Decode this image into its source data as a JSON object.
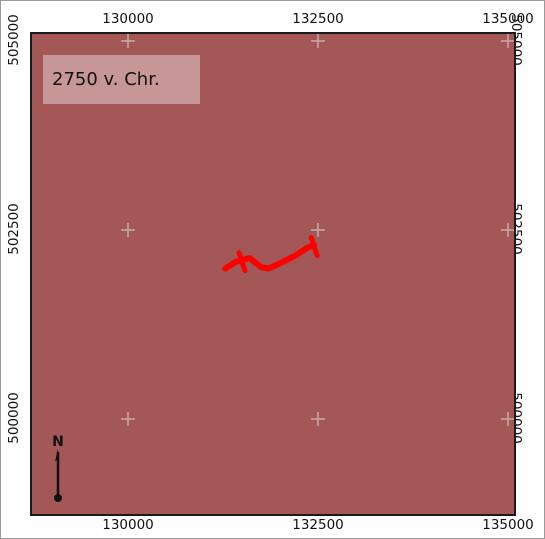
{
  "map": {
    "year_label": "2750 v. Chr.",
    "north_label": "N",
    "background_color": "#a35756",
    "route_color": "#ff0000",
    "grid_cross_color": "#c8a6a4",
    "x_ticks": [
      "130000",
      "132500",
      "135000"
    ],
    "y_ticks": [
      "505000",
      "502500",
      "500000"
    ],
    "grid_crosses": [
      {
        "x": 130000,
        "y": 505000
      },
      {
        "x": 132500,
        "y": 505000
      },
      {
        "x": 135000,
        "y": 505000
      },
      {
        "x": 130000,
        "y": 502500
      },
      {
        "x": 132500,
        "y": 502500
      },
      {
        "x": 135000,
        "y": 502500
      },
      {
        "x": 130000,
        "y": 500000
      },
      {
        "x": 132500,
        "y": 500000
      },
      {
        "x": 135000,
        "y": 500000
      }
    ],
    "route_points": [
      [
        131280,
        501990
      ],
      [
        131420,
        502080
      ],
      [
        131600,
        502130
      ],
      [
        131750,
        502010
      ],
      [
        131850,
        501990
      ],
      [
        132000,
        502060
      ],
      [
        132200,
        502160
      ],
      [
        132350,
        502260
      ],
      [
        132450,
        502300
      ]
    ],
    "route_cross_marks": [
      {
        "x": 131500,
        "y": 502080
      },
      {
        "x": 132450,
        "y": 502280
      }
    ]
  }
}
